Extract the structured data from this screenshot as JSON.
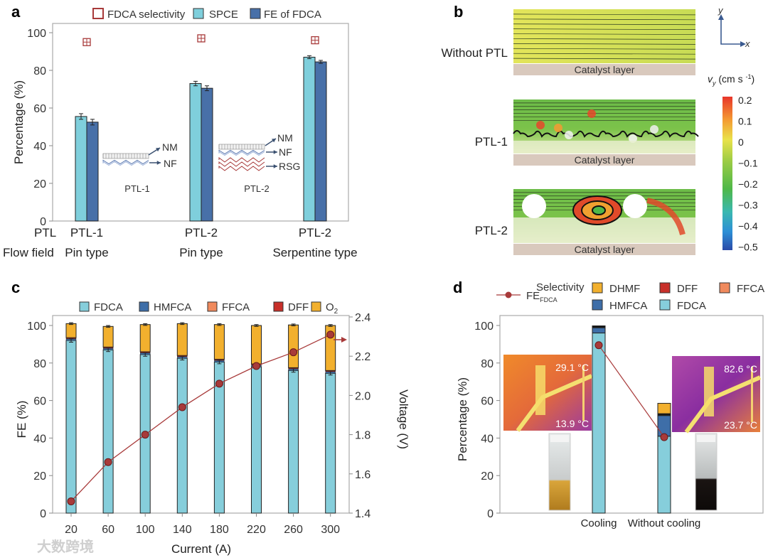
{
  "watermark": "大数跨境",
  "chart_data": [
    {
      "panel": "a",
      "type": "bar",
      "ylabel": "Percentage (%)",
      "ylim": [
        0,
        100
      ],
      "yticks": [
        0,
        20,
        40,
        60,
        80,
        100
      ],
      "row_labels": [
        "PTL",
        "Flow field"
      ],
      "categories": [
        {
          "ptl": "PTL-1",
          "flow": "Pin type"
        },
        {
          "ptl": "PTL-2",
          "flow": "Pin type"
        },
        {
          "ptl": "PTL-2",
          "flow": "Serpentine type"
        }
      ],
      "legend": [
        "FDCA selectivity",
        "SPCE",
        "FE of FDCA"
      ],
      "series": [
        {
          "name": "SPCE",
          "values": [
            55.5,
            73,
            87
          ],
          "errors": [
            1.5,
            1.2,
            0.8
          ],
          "color": "#7fcfdc"
        },
        {
          "name": "FE of FDCA",
          "values": [
            52.5,
            70.5,
            84.5
          ],
          "errors": [
            1.5,
            1.3,
            0.8
          ],
          "color": "#4870a8"
        },
        {
          "name": "FDCA selectivity",
          "values": [
            95,
            97,
            96
          ],
          "color": "#a83a3a"
        }
      ],
      "insets": [
        {
          "title": "PTL-1",
          "layers": [
            "NM",
            "NF"
          ]
        },
        {
          "title": "PTL-2",
          "layers": [
            "NM",
            "NF",
            "RSG"
          ]
        }
      ]
    },
    {
      "panel": "b",
      "type": "heatmap",
      "rows": [
        "Without PTL",
        "PTL-1",
        "PTL-2"
      ],
      "substrate_label": "Catalyst layer",
      "axes": {
        "x": "x",
        "y": "y"
      },
      "colorbar": {
        "label": "v",
        "label_sub": "y",
        "unit": "(cm s",
        "unit_sup": "-1",
        "unit_close": ")",
        "ticks": [
          "0.2",
          "0.1",
          "0",
          "−0.1",
          "−0.2",
          "−0.3",
          "−0.4",
          "−0.5"
        ],
        "range": [
          -0.5,
          0.2
        ]
      }
    },
    {
      "panel": "c",
      "type": "bar",
      "stacked": true,
      "xlabel": "Current (A)",
      "ylabel": "FE (%)",
      "y2label": "Voltage (V)",
      "ylim": [
        0,
        100
      ],
      "y2lim": [
        1.4,
        2.4
      ],
      "yticks": [
        0,
        20,
        40,
        60,
        80,
        100
      ],
      "y2ticks": [
        "1.4",
        "1.6",
        "1.8",
        "2.0",
        "2.2",
        "2.4"
      ],
      "categories": [
        "20",
        "60",
        "100",
        "140",
        "180",
        "220",
        "260",
        "300"
      ],
      "legend": [
        "FDCA",
        "HMFCA",
        "FFCA",
        "DFF",
        "O"
      ],
      "legend_o2_sub": "2",
      "series": [
        {
          "name": "FDCA",
          "values": [
            92,
            87,
            84.5,
            82.5,
            80.5,
            78,
            76,
            74.5
          ],
          "color": "#86cedb"
        },
        {
          "name": "HMFCA",
          "values": [
            0.8,
            0.8,
            0.8,
            0.8,
            0.8,
            0.8,
            0.8,
            0.8
          ],
          "color": "#3e6ea8"
        },
        {
          "name": "FFCA",
          "values": [
            0.2,
            0.2,
            0.2,
            0.2,
            0.2,
            0.2,
            0.2,
            0.2
          ],
          "color": "#f08a5d"
        },
        {
          "name": "DFF",
          "values": [
            0.5,
            0.5,
            0.5,
            0.5,
            0.5,
            0.5,
            0.5,
            0.5
          ],
          "color": "#c8302a"
        },
        {
          "name": "O2",
          "values": [
            7.5,
            11,
            14.5,
            17,
            18.5,
            20.5,
            22.8,
            24
          ],
          "color": "#f2b02e"
        }
      ],
      "voltage": {
        "values": [
          1.46,
          1.66,
          1.8,
          1.94,
          2.06,
          2.15,
          2.22,
          2.31
        ],
        "color": "#a83a3a"
      }
    },
    {
      "panel": "d",
      "type": "bar",
      "stacked": true,
      "ylabel": "Percentage (%)",
      "ylim": [
        0,
        100
      ],
      "yticks": [
        0,
        20,
        40,
        60,
        80,
        100
      ],
      "categories": [
        "Cooling",
        "Without cooling"
      ],
      "legend_title": "Selectivity",
      "legend": [
        "DHMF",
        "DFF",
        "FFCA",
        "HMFCA",
        "FDCA"
      ],
      "line_legend": "FE",
      "line_legend_sub": "FDCA",
      "series": [
        {
          "name": "FDCA",
          "values": [
            96,
            41
          ],
          "color": "#86cedb"
        },
        {
          "name": "HMFCA",
          "values": [
            2.8,
            11
          ],
          "color": "#3e6ea8"
        },
        {
          "name": "FFCA",
          "values": [
            0.2,
            0.2
          ],
          "color": "#f08a5d"
        },
        {
          "name": "DFF",
          "values": [
            0.8,
            0.8
          ],
          "color": "#111111"
        },
        {
          "name": "DHMF",
          "values": [
            0,
            5.5
          ],
          "color": "#f2b02e"
        }
      ],
      "fe_fdca": {
        "values": [
          89.5,
          40.5
        ],
        "color": "#a83a3a"
      },
      "thermal_insets": [
        {
          "max": "29.1 °C",
          "min": "13.9 °C"
        },
        {
          "max": "82.6 °C",
          "min": "23.7 °C"
        }
      ]
    }
  ],
  "panel_letters": [
    "a",
    "b",
    "c",
    "d"
  ]
}
